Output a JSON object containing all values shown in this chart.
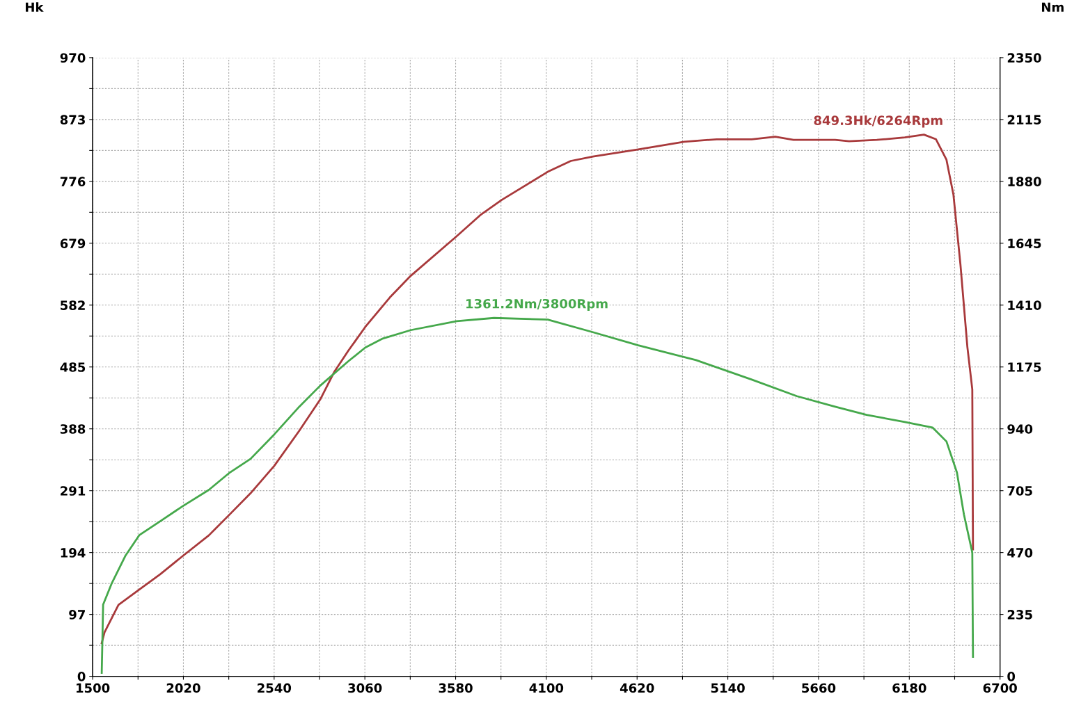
{
  "chart_data": {
    "type": "line",
    "ylabel": "Hk",
    "y2label": "Nm",
    "grid": true,
    "line_style": "solid",
    "marker": "none",
    "xlim": [
      1500,
      6700
    ],
    "xticks": [
      1500,
      {
        "value": 1760,
        "label": null
      },
      2020,
      {
        "value": 2280,
        "label": null
      },
      2540,
      {
        "value": 2800,
        "label": null
      },
      3060,
      {
        "value": 3320,
        "label": null
      },
      3580,
      {
        "value": 3840,
        "label": null
      },
      4100,
      {
        "value": 4360,
        "label": null
      },
      4620,
      {
        "value": 4880,
        "label": null
      },
      5140,
      {
        "value": 5400,
        "label": null
      },
      5660,
      {
        "value": 5920,
        "label": null
      },
      6180,
      {
        "value": 6440,
        "label": null
      },
      6700
    ],
    "ylim": [
      0,
      970
    ],
    "yticks": [
      0,
      {
        "value": 48.5,
        "label": null
      },
      97,
      {
        "value": 145.5,
        "label": null
      },
      194,
      {
        "value": 242.5,
        "label": null
      },
      291,
      {
        "value": 339.5,
        "label": null
      },
      388,
      {
        "value": 436.5,
        "label": null
      },
      485,
      {
        "value": 533.5,
        "label": null
      },
      582,
      {
        "value": 630.5,
        "label": null
      },
      679,
      {
        "value": 727.5,
        "label": null
      },
      776,
      {
        "value": 824.5,
        "label": null
      },
      873,
      {
        "value": 921.5,
        "label": null
      },
      970
    ],
    "y2lim": [
      0,
      2350
    ],
    "y2ticks": [
      0,
      235,
      470,
      705,
      940,
      1175,
      1410,
      1645,
      1880,
      2115,
      2350
    ],
    "series": [
      {
        "color": "#a8393b",
        "x": [
          1552,
          1568,
          1648,
          1767,
          1887,
          2018,
          2166,
          2286,
          2405,
          2541,
          2684,
          2804,
          2884,
          2964,
          3063,
          3203,
          3323,
          3586,
          3721,
          3845,
          4108,
          4240,
          4367,
          4627,
          4890,
          5077,
          5277,
          5412,
          5516,
          5755,
          5835,
          5994,
          6154,
          6264,
          6333,
          6393,
          6433,
          6473,
          6513,
          6541,
          6545
        ],
        "values": [
          52,
          69,
          112,
          136,
          160,
          189,
          221,
          254,
          287,
          330,
          385,
          434,
          477,
          510,
          548,
          594,
          628,
          690,
          723,
          747,
          791,
          808,
          815,
          826,
          838,
          842,
          842,
          846,
          841,
          841,
          839,
          841,
          845,
          849.3,
          842,
          810,
          755,
          646,
          516,
          450,
          199
        ]
      },
      {
        "color": "#45a84b",
        "axis": "y2",
        "x": [
          1552,
          1560,
          1608,
          1687,
          1767,
          1887,
          2018,
          2166,
          2286,
          2405,
          2541,
          2684,
          2804,
          2964,
          3063,
          3163,
          3323,
          3586,
          3800,
          4108,
          4367,
          4627,
          4958,
          5277,
          5536,
          5755,
          5935,
          6154,
          6313,
          6393,
          6453,
          6493,
          6541,
          6545
        ],
        "values": [
          13,
          272,
          351,
          457,
          536,
          589,
          647,
          708,
          774,
          826,
          919,
          1024,
          1104,
          1196,
          1249,
          1283,
          1315,
          1349,
          1361.2,
          1355,
          1307,
          1257,
          1201,
          1127,
          1064,
          1024,
          993,
          966,
          945,
          892,
          774,
          615,
          470,
          74
        ]
      }
    ],
    "annotations": [
      "849.3Hk/6264Rpm",
      "1361.2Nm/3800Rpm"
    ]
  }
}
